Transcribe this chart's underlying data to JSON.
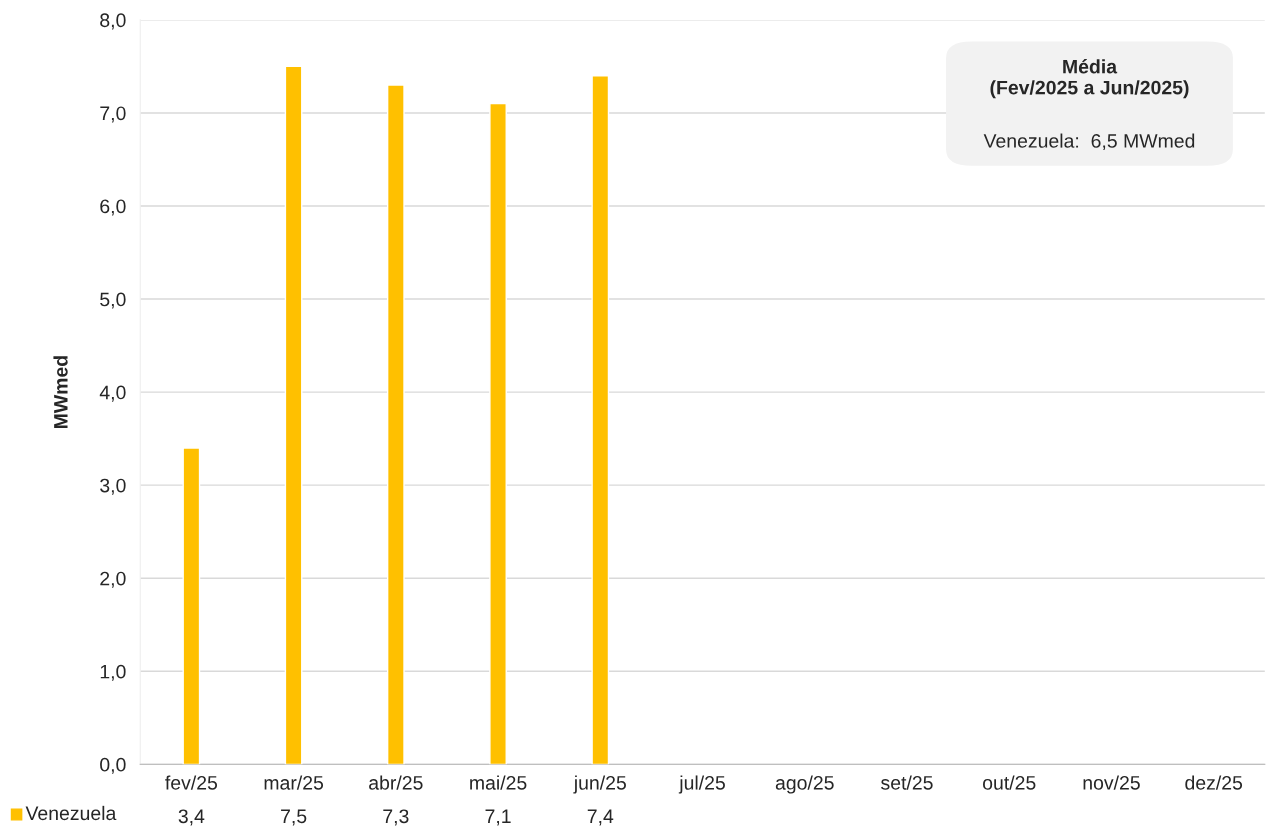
{
  "chart_data": {
    "type": "bar",
    "ylabel": "MWmed",
    "categories": [
      "fev/25",
      "mar/25",
      "abr/25",
      "mai/25",
      "jun/25",
      "jul/25",
      "ago/25",
      "set/25",
      "out/25",
      "nov/25",
      "dez/25"
    ],
    "series": [
      {
        "name": "Venezuela",
        "color": "#ffc000",
        "values": [
          3.4,
          7.5,
          7.3,
          7.1,
          7.4,
          null,
          null,
          null,
          null,
          null,
          null
        ],
        "value_labels": [
          "3,4",
          "7,5",
          "7,3",
          "7,1",
          "7,4",
          null,
          null,
          null,
          null,
          null,
          null
        ]
      }
    ],
    "ylim": [
      0,
      8
    ],
    "yticks": [
      {
        "value": 0,
        "label": "0,0"
      },
      {
        "value": 1,
        "label": "1,0"
      },
      {
        "value": 2,
        "label": "2,0"
      },
      {
        "value": 3,
        "label": "3,0"
      },
      {
        "value": 4,
        "label": "4,0"
      },
      {
        "value": 5,
        "label": "5,0"
      },
      {
        "value": 6,
        "label": "6,0"
      },
      {
        "value": 7,
        "label": "7,0"
      },
      {
        "value": 8,
        "label": "8,0"
      }
    ],
    "grid": "y",
    "legend": "bottom left",
    "annotations": [
      "Média\n(Fev/2025 a Jun/2025)",
      "Venezuela:  6,5 MWmed"
    ]
  }
}
